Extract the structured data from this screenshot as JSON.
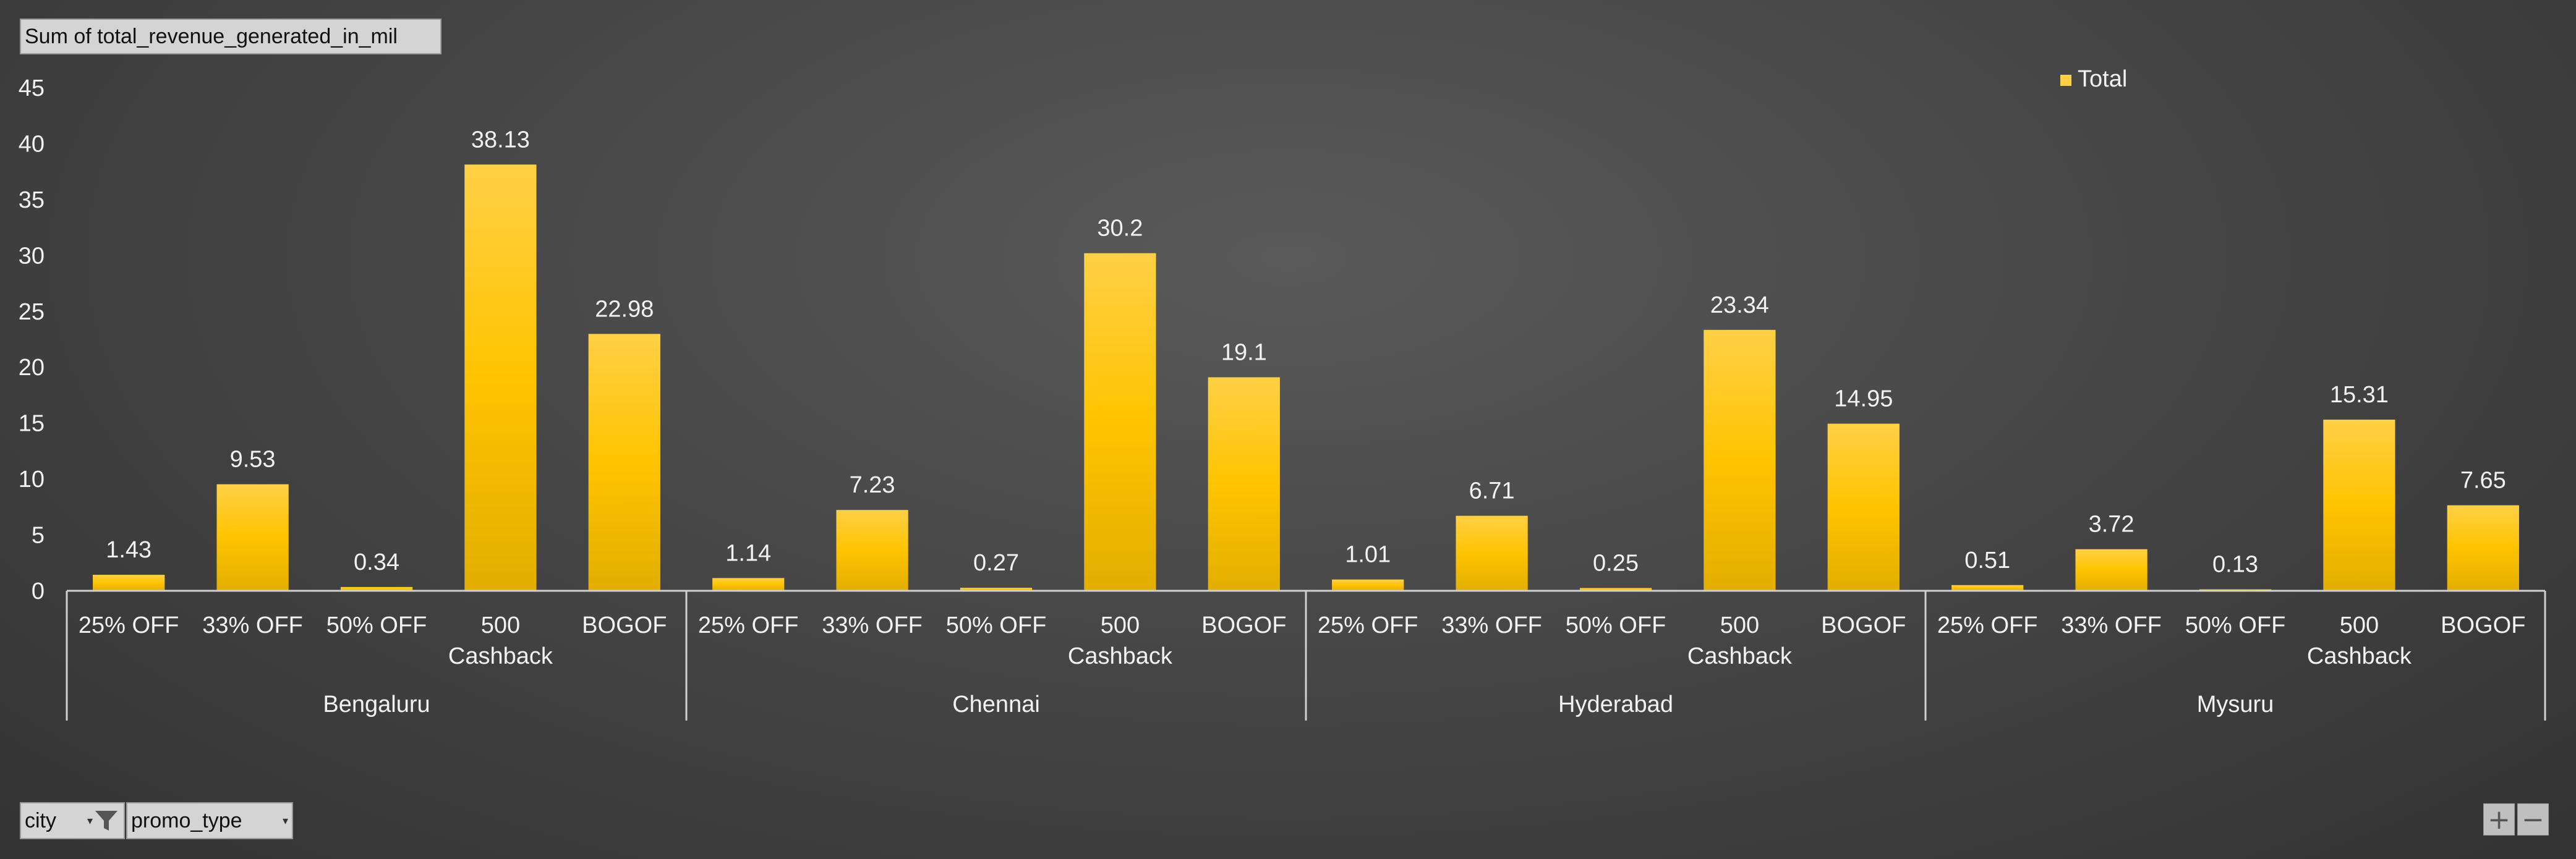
{
  "value_field": "Sum of total_revenue_generated_in_mil",
  "filters": {
    "city": {
      "label": "city",
      "icon": "filter-icon"
    },
    "promo_type": {
      "label": "promo_type",
      "icon": "chevron-down-icon"
    }
  },
  "zoom": {
    "plus": "+",
    "minus": "−"
  },
  "colors": {
    "bar_top": "#ffd046",
    "bar_bottom": "#e2ae00",
    "text": "#f2f2f2",
    "axis": "#d0d0d0"
  },
  "chart_data": {
    "type": "bar",
    "ylim": [
      0,
      45
    ],
    "yticks": [
      0,
      5,
      10,
      15,
      20,
      25,
      30,
      35,
      40,
      45
    ],
    "legend": {
      "position": "top-right",
      "entries": [
        "Total"
      ]
    },
    "groups": [
      {
        "name": "Bengaluru",
        "categories": [
          "25% OFF",
          "33% OFF",
          "50% OFF",
          "500 Cashback",
          "BOGOF"
        ],
        "values": [
          1.43,
          9.53,
          0.34,
          38.13,
          22.98
        ]
      },
      {
        "name": "Chennai",
        "categories": [
          "25% OFF",
          "33% OFF",
          "50% OFF",
          "500 Cashback",
          "BOGOF"
        ],
        "values": [
          1.14,
          7.23,
          0.27,
          30.2,
          19.1
        ]
      },
      {
        "name": "Hyderabad",
        "categories": [
          "25% OFF",
          "33% OFF",
          "50% OFF",
          "500 Cashback",
          "BOGOF"
        ],
        "values": [
          1.01,
          6.71,
          0.25,
          23.34,
          14.95
        ]
      },
      {
        "name": "Mysuru",
        "categories": [
          "25% OFF",
          "33% OFF",
          "50% OFF",
          "500 Cashback",
          "BOGOF"
        ],
        "values": [
          0.51,
          3.72,
          0.13,
          15.31,
          7.65
        ]
      }
    ]
  }
}
